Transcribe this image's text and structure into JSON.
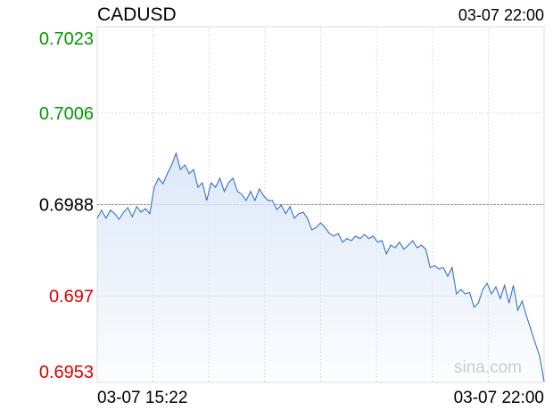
{
  "chart_data": {
    "type": "line",
    "title": "CADUSD",
    "timestamp": "03-07 22:00",
    "x_labels": [
      "03-07 15:22",
      "03-07 22:00"
    ],
    "watermark": "sina.com",
    "color": "#3a6fc4",
    "fill_color": "#dce8f8",
    "up_color": "#009900",
    "down_color": "#dd0000",
    "reference": 0.6988,
    "ylim": [
      0.6953,
      0.7023
    ],
    "yticks": [
      0.7023,
      0.7006,
      0.6988,
      0.697,
      0.6953
    ],
    "grid": true,
    "values": [
      0.69853,
      0.69869,
      0.69853,
      0.69869,
      0.69862,
      0.69851,
      0.69865,
      0.69874,
      0.69856,
      0.69876,
      0.69865,
      0.69872,
      0.69862,
      0.69914,
      0.69932,
      0.69921,
      0.69941,
      0.69958,
      0.69981,
      0.69949,
      0.69958,
      0.69941,
      0.69949,
      0.69914,
      0.69923,
      0.69888,
      0.69923,
      0.69914,
      0.69932,
      0.69906,
      0.69923,
      0.69932,
      0.69906,
      0.699,
      0.69888,
      0.69906,
      0.69888,
      0.69911,
      0.69897,
      0.69888,
      0.69888,
      0.6987,
      0.69879,
      0.69862,
      0.69876,
      0.69853,
      0.69862,
      0.69865,
      0.69853,
      0.6983,
      0.69835,
      0.69844,
      0.69835,
      0.69823,
      0.69818,
      0.69823,
      0.69806,
      0.69813,
      0.69809,
      0.69818,
      0.69813,
      0.69821,
      0.69813,
      0.69818,
      0.69806,
      0.69809,
      0.69783,
      0.698,
      0.69795,
      0.69806,
      0.69792,
      0.698,
      0.69809,
      0.69795,
      0.698,
      0.69792,
      0.69756,
      0.6976,
      0.69753,
      0.69756,
      0.69739,
      0.69756,
      0.69704,
      0.69713,
      0.69704,
      0.69707,
      0.69678,
      0.69686,
      0.69713,
      0.69725,
      0.69704,
      0.69718,
      0.69695,
      0.69721,
      0.69686,
      0.69721,
      0.69672,
      0.6969,
      0.6966,
      0.69634,
      0.69607,
      0.69581,
      0.69532
    ]
  }
}
